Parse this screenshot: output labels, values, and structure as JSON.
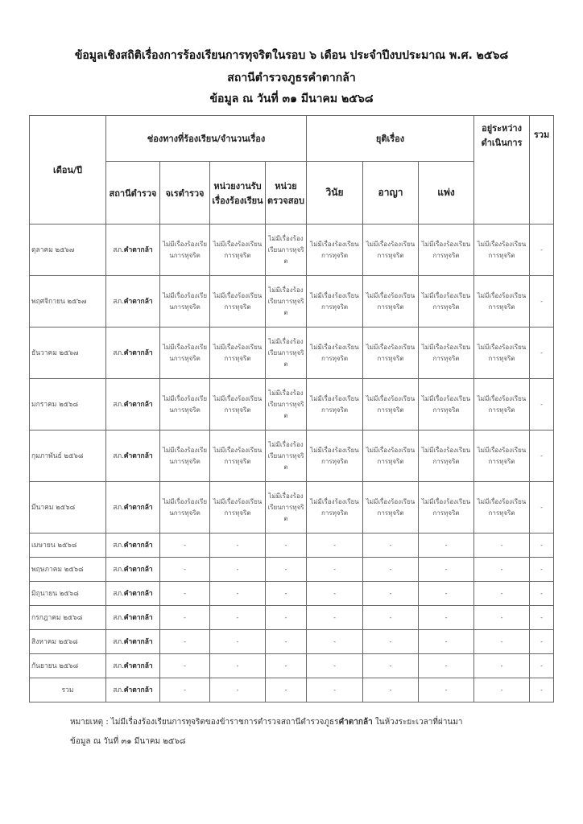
{
  "header": {
    "title_line1": "ข้อมูลเชิงสถิติเรื่องการร้องเรียนการทุจริตในรอบ ๖ เดือน ประจำปีงบประมาณ พ.ศ. ๒๕๖๘",
    "title_line2": "สถานีตำรวจภูธรคำตากล้า",
    "title_line3": "ข้อมูล ณ วันที่ ๓๑ มีนาคม ๒๕๖๘"
  },
  "table": {
    "col_month": "เดือน/ปี",
    "group_channels": "ช่องทางที่ร้องเรียน/จำนวนเรื่อง",
    "group_resolved": "ยุติเรื่อง",
    "col_in_progress": "อยู่ระหว่างดำเนินการ",
    "col_total": "รวม",
    "sub_headers": [
      "สถานีตำรวจ",
      "จเรตำรวจ",
      "หน่วยงานรับเรื่องร้องเรียน",
      "หน่วยตรวจสอบ",
      "วินัย",
      "อาญา",
      "แพ่ง"
    ],
    "station_prefix": "สภ.",
    "station_name": "คำตากล้า",
    "no_complaint": "ไม่มีเรื่องร้องเรียนการทุจริต",
    "dash": "-",
    "rows": [
      {
        "month": "ตุลาคม ๒๕๖๗",
        "has_data": true
      },
      {
        "month": "พฤศจิกายน ๒๕๖๗",
        "has_data": true
      },
      {
        "month": "ธันวาคม ๒๕๖๗",
        "has_data": true
      },
      {
        "month": "มกราคม ๒๕๖๘",
        "has_data": true
      },
      {
        "month": "กุมภาพันธ์ ๒๕๖๘",
        "has_data": true
      },
      {
        "month": "มีนาคม ๒๕๖๘",
        "has_data": true
      },
      {
        "month": "เมษายน ๒๕๖๘",
        "has_data": false
      },
      {
        "month": "พฤษภาคม ๒๕๖๘",
        "has_data": false
      },
      {
        "month": "มิถุนายน ๒๕๖๘",
        "has_data": false
      },
      {
        "month": "กรกฎาคม ๒๕๖๘",
        "has_data": false
      },
      {
        "month": "สิงหาคม ๒๕๖๘",
        "has_data": false
      },
      {
        "month": "กันยายน ๒๕๖๘",
        "has_data": false
      },
      {
        "month": "รวม",
        "has_data": false
      }
    ]
  },
  "footer": {
    "note_prefix": "หมายเหตุ : ไม่มีเรื่องร้องเรียนการทุจริตของข้าราชการตำรวจสถานีตำรวจภูธร",
    "note_bold": "คำตากล้า",
    "note_suffix": " ในห้วงระยะเวลาที่ผ่านมา",
    "as_of": "ข้อมูล ณ วันที่ ๓๑ มีนาคม ๒๕๖๘"
  }
}
